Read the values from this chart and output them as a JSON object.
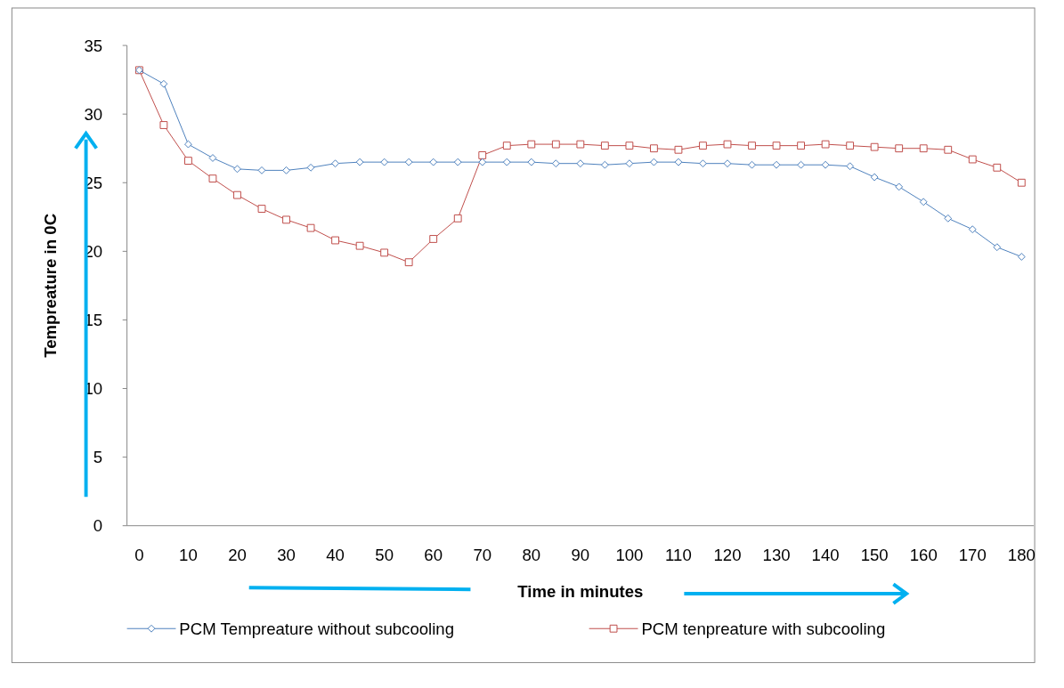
{
  "chart_data": {
    "type": "line",
    "xlabel": "Time in minutes",
    "ylabel": "Tempreature in 0C",
    "categories": [
      "0",
      null,
      "10",
      null,
      "20",
      null,
      "30",
      null,
      "40",
      null,
      "50",
      null,
      "60",
      null,
      "70",
      null,
      "80",
      null,
      "90",
      null,
      "100",
      null,
      "110",
      null,
      "120",
      null,
      "130",
      null,
      "140",
      null,
      "150",
      null,
      "160",
      null,
      "170",
      null,
      "180"
    ],
    "ylim": [
      0,
      35
    ],
    "yticks": [
      0,
      5,
      10,
      15,
      20,
      25,
      30,
      35
    ],
    "grid": false,
    "legend": "bottom",
    "line_style": "solid",
    "series": [
      {
        "name": "PCM Tempreature without subcooling",
        "color": "#4a7ebb",
        "marker": "diamond",
        "values": [
          33.2,
          32.2,
          27.8,
          26.8,
          26.0,
          25.9,
          25.9,
          26.1,
          26.4,
          26.5,
          26.5,
          26.5,
          26.5,
          26.5,
          26.5,
          26.5,
          26.5,
          26.4,
          26.4,
          26.3,
          26.4,
          26.5,
          26.5,
          26.4,
          26.4,
          26.3,
          26.3,
          26.3,
          26.3,
          26.2,
          25.4,
          24.7,
          23.6,
          22.4,
          21.6,
          20.3,
          19.6
        ]
      },
      {
        "name": "PCM tenpreature with subcooling",
        "color": "#be4b48",
        "marker": "square",
        "values": [
          33.2,
          29.2,
          26.6,
          25.3,
          24.1,
          23.1,
          22.3,
          21.7,
          20.8,
          20.4,
          19.9,
          19.2,
          20.9,
          22.4,
          27.0,
          27.7,
          27.8,
          27.8,
          27.8,
          27.7,
          27.7,
          27.5,
          27.4,
          27.7,
          27.8,
          27.7,
          27.7,
          27.7,
          27.8,
          27.7,
          27.6,
          27.5,
          27.5,
          27.4,
          26.7,
          26.1,
          25.0
        ]
      }
    ]
  }
}
